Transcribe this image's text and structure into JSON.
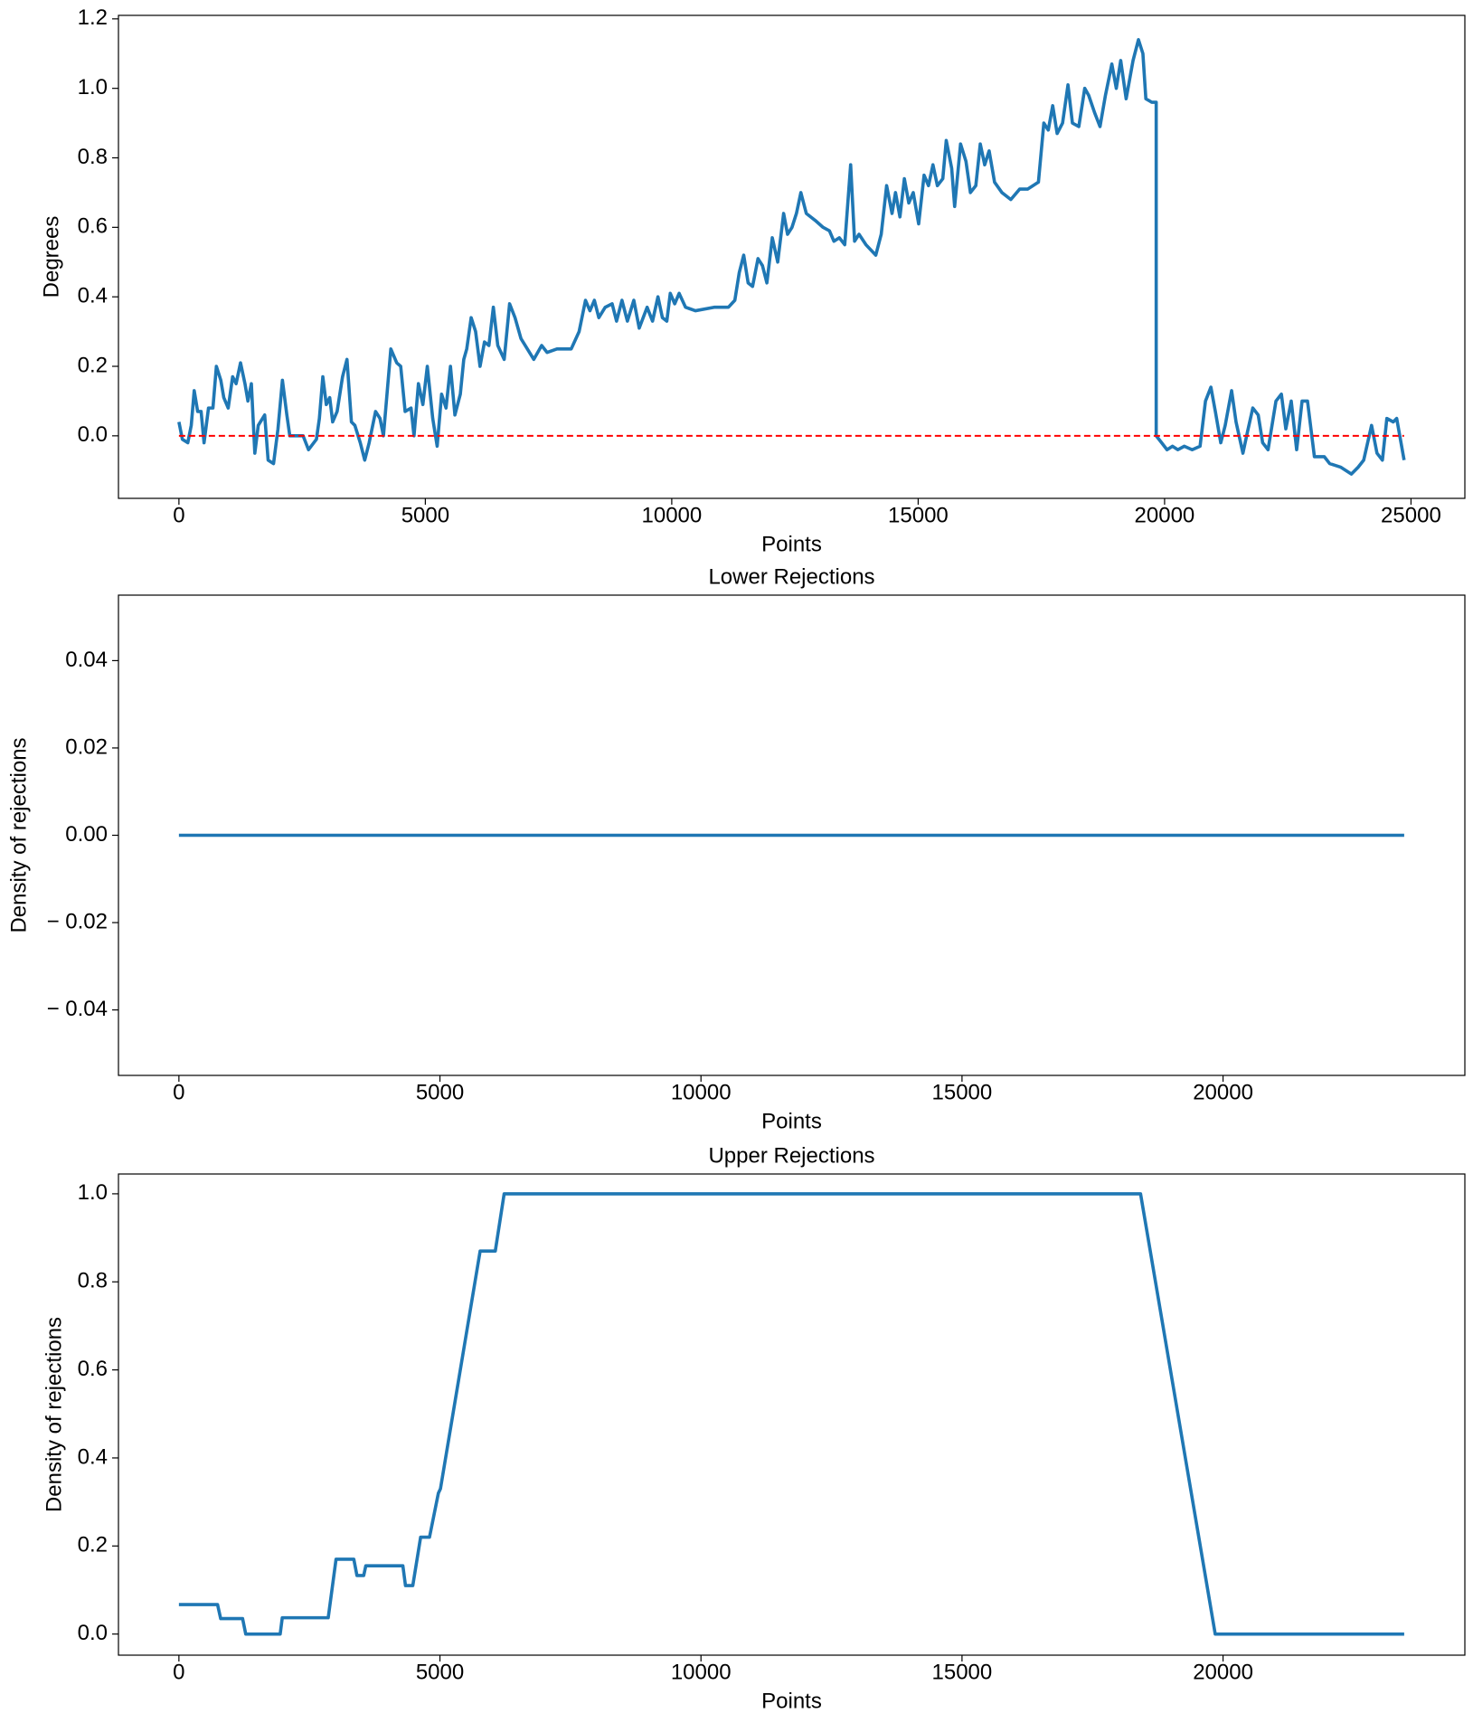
{
  "chart_data": [
    {
      "type": "line",
      "xlabel": "Points",
      "ylabel": "Degrees",
      "xlim": [
        -1227,
        26093
      ],
      "ylim": [
        -0.18,
        1.21
      ],
      "xticks": [
        0,
        5000,
        10000,
        15000,
        20000,
        25000
      ],
      "yticks": [
        {
          "value": 0,
          "label": "0.0"
        },
        0.2,
        0.4,
        0.6,
        0.8,
        {
          "value": 1,
          "label": "1.0"
        },
        1.2
      ],
      "grid": false,
      "series": [
        {
          "color": "#1f77b4",
          "x": [
            0,
            70,
            180,
            250,
            310,
            380,
            450,
            510,
            600,
            690,
            760,
            850,
            910,
            1000,
            1090,
            1160,
            1250,
            1340,
            1400,
            1470,
            1540,
            1610,
            1740,
            1810,
            1920,
            2010,
            2100,
            2190,
            2250,
            2390,
            2520,
            2630,
            2790,
            2850,
            2920,
            2990,
            3060,
            3120,
            3210,
            3320,
            3410,
            3500,
            3570,
            3680,
            3770,
            3860,
            3990,
            4080,
            4150,
            4300,
            4420,
            4500,
            4590,
            4710,
            4770,
            4860,
            4950,
            5040,
            5150,
            5240,
            5330,
            5420,
            5510,
            5600,
            5710,
            5780,
            5840,
            5930,
            6020,
            6110,
            6200,
            6290,
            6380,
            6470,
            6600,
            6710,
            6820,
            6940,
            7070,
            7200,
            7360,
            7470,
            7670,
            7960,
            8120,
            8250,
            8340,
            8430,
            8520,
            8650,
            8790,
            8880,
            8990,
            9100,
            9230,
            9340,
            9500,
            9610,
            9720,
            9810,
            9900,
            9970,
            10060,
            10150,
            10280,
            10480,
            10860,
            11150,
            11280,
            11370,
            11460,
            11550,
            11640,
            11750,
            11840,
            11930,
            12040,
            12150,
            12270,
            12350,
            12440,
            12530,
            12620,
            12730,
            12910,
            13070,
            13200,
            13290,
            13400,
            13510,
            13630,
            13710,
            13800,
            13940,
            14140,
            14250,
            14360,
            14470,
            14540,
            14630,
            14720,
            14810,
            14900,
            15010,
            15120,
            15210,
            15300,
            15390,
            15500,
            15570,
            15680,
            15740,
            15860,
            15970,
            16060,
            16170,
            16260,
            16350,
            16440,
            16550,
            16700,
            16880,
            17060,
            17220,
            17440,
            17550,
            17640,
            17730,
            17820,
            17930,
            18040,
            18130,
            18260,
            18380,
            18460,
            18580,
            18690,
            18800,
            18930,
            19020,
            19110,
            19220,
            19360,
            19470,
            19560,
            19620,
            19740,
            19830,
            19830,
            19940,
            20050,
            20160,
            20270,
            20400,
            20560,
            20720,
            20830,
            20940,
            21030,
            21140,
            21230,
            21360,
            21450,
            21590,
            21680,
            21790,
            21900,
            21990,
            22100,
            22260,
            22370,
            22460,
            22570,
            22680,
            22790,
            22900,
            23040,
            23240,
            23350,
            23570,
            23790,
            23930,
            24040,
            24200,
            24310,
            24420,
            24510,
            24640,
            24710,
            24860
          ],
          "values": [
            0.04,
            -0.01,
            -0.02,
            0.03,
            0.13,
            0.07,
            0.07,
            -0.02,
            0.08,
            0.08,
            0.2,
            0.16,
            0.11,
            0.08,
            0.17,
            0.15,
            0.21,
            0.15,
            0.1,
            0.15,
            -0.05,
            0.03,
            0.06,
            -0.07,
            -0.08,
            0.02,
            0.16,
            0.06,
            0.0,
            0.0,
            0.0,
            -0.04,
            -0.01,
            0.05,
            0.17,
            0.09,
            0.11,
            0.04,
            0.07,
            0.17,
            0.22,
            0.04,
            0.03,
            -0.02,
            -0.07,
            -0.02,
            0.07,
            0.05,
            0.0,
            0.25,
            0.21,
            0.2,
            0.07,
            0.08,
            0.0,
            0.15,
            0.09,
            0.2,
            0.05,
            -0.03,
            0.12,
            0.08,
            0.2,
            0.06,
            0.12,
            0.22,
            0.25,
            0.34,
            0.3,
            0.2,
            0.27,
            0.26,
            0.37,
            0.26,
            0.22,
            0.38,
            0.34,
            0.28,
            0.25,
            0.22,
            0.26,
            0.24,
            0.25,
            0.25,
            0.3,
            0.39,
            0.36,
            0.39,
            0.34,
            0.37,
            0.38,
            0.33,
            0.39,
            0.33,
            0.39,
            0.31,
            0.37,
            0.33,
            0.4,
            0.34,
            0.33,
            0.41,
            0.38,
            0.41,
            0.37,
            0.36,
            0.37,
            0.37,
            0.39,
            0.47,
            0.52,
            0.44,
            0.43,
            0.51,
            0.49,
            0.44,
            0.57,
            0.5,
            0.64,
            0.58,
            0.6,
            0.64,
            0.7,
            0.64,
            0.62,
            0.6,
            0.59,
            0.56,
            0.57,
            0.55,
            0.78,
            0.56,
            0.58,
            0.55,
            0.52,
            0.58,
            0.72,
            0.64,
            0.7,
            0.63,
            0.74,
            0.67,
            0.7,
            0.61,
            0.75,
            0.72,
            0.78,
            0.72,
            0.74,
            0.85,
            0.77,
            0.66,
            0.84,
            0.79,
            0.7,
            0.72,
            0.84,
            0.78,
            0.82,
            0.73,
            0.7,
            0.68,
            0.71,
            0.71,
            0.73,
            0.9,
            0.88,
            0.95,
            0.87,
            0.9,
            1.01,
            0.9,
            0.89,
            1.0,
            0.98,
            0.93,
            0.89,
            0.98,
            1.07,
            1.0,
            1.08,
            0.97,
            1.08,
            1.14,
            1.1,
            0.97,
            0.96,
            0.96,
            0.0,
            -0.02,
            -0.04,
            -0.03,
            -0.04,
            -0.03,
            -0.04,
            -0.03,
            0.1,
            0.14,
            0.07,
            -0.02,
            0.03,
            0.13,
            0.04,
            -0.05,
            0.01,
            0.08,
            0.06,
            -0.02,
            -0.04,
            0.1,
            0.12,
            0.02,
            0.1,
            -0.04,
            0.1,
            0.1,
            -0.06,
            -0.06,
            -0.08,
            -0.09,
            -0.11,
            -0.09,
            -0.07,
            0.03,
            -0.05,
            -0.07,
            0.05,
            0.04,
            0.05,
            -0.07
          ]
        },
        {
          "color": "#ff0000",
          "linestyle": "dashed",
          "x": [
            0,
            24860
          ],
          "values": [
            0,
            0
          ]
        }
      ]
    },
    {
      "type": "line",
      "title": "Lower Rejections",
      "xlabel": "Points",
      "ylabel": "Density of rejections",
      "xlim": [
        -1158,
        24632
      ],
      "ylim": [
        -0.055,
        0.055
      ],
      "xticks": [
        0,
        5000,
        10000,
        15000,
        20000
      ],
      "yticks": [
        {
          "value": -0.04,
          "label": "− 0.04"
        },
        {
          "value": -0.02,
          "label": "− 0.02"
        },
        {
          "value": 0,
          "label": "0.00"
        },
        0.02,
        0.04
      ],
      "grid": false,
      "series": [
        {
          "color": "#1f77b4",
          "x": [
            0,
            23470
          ],
          "values": [
            0,
            0
          ]
        }
      ]
    },
    {
      "type": "line",
      "title": "Upper Rejections",
      "xlabel": "Points",
      "ylabel": "Density of rejections",
      "xlim": [
        -1158,
        24632
      ],
      "ylim": [
        -0.048,
        1.045
      ],
      "xticks": [
        0,
        5000,
        10000,
        15000,
        20000
      ],
      "yticks": [
        {
          "value": 0,
          "label": "0.0"
        },
        0.2,
        0.4,
        0.6,
        0.8,
        {
          "value": 1,
          "label": "1.0"
        }
      ],
      "grid": false,
      "series": [
        {
          "color": "#1f77b4",
          "x": [
            0,
            740,
            800,
            1220,
            1280,
            1940,
            1980,
            2860,
            3010,
            3350,
            3410,
            3540,
            3580,
            4290,
            4340,
            4480,
            4630,
            4800,
            4970,
            5010,
            5770,
            6060,
            6230,
            18420,
            19850,
            23470
          ],
          "values": [
            0.067,
            0.067,
            0.035,
            0.035,
            0,
            0,
            0.037,
            0.037,
            0.17,
            0.17,
            0.133,
            0.133,
            0.155,
            0.155,
            0.11,
            0.11,
            0.22,
            0.22,
            0.32,
            0.33,
            0.87,
            0.87,
            1.0,
            1.0,
            0,
            0
          ]
        }
      ]
    }
  ]
}
